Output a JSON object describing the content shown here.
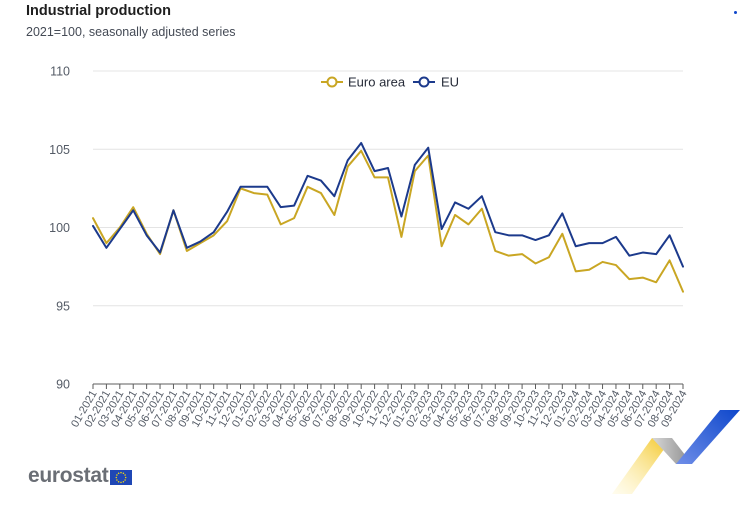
{
  "header": {
    "title": "Industrial production",
    "subtitle": "2021=100, seasonally adjusted series"
  },
  "logo": {
    "text": "eurostat"
  },
  "colors": {
    "euro_area": "#c9a623",
    "eu": "#1c3a8c",
    "grid": "#e4e4e4",
    "axis": "#5c5c5c"
  },
  "chart_data": {
    "type": "line",
    "title": "Industrial production",
    "subtitle": "2021=100, seasonally adjusted series",
    "xlabel": "",
    "ylabel": "",
    "ylim": [
      90,
      110
    ],
    "yticks": [
      90,
      95,
      100,
      105,
      110
    ],
    "grid": true,
    "legend_position": "top-center",
    "x": [
      "01-2021",
      "02-2021",
      "03-2021",
      "04-2021",
      "05-2021",
      "06-2021",
      "07-2021",
      "08-2021",
      "09-2021",
      "10-2021",
      "11-2021",
      "12-2021",
      "01-2022",
      "02-2022",
      "03-2022",
      "04-2022",
      "05-2022",
      "06-2022",
      "07-2022",
      "08-2022",
      "09-2022",
      "10-2022",
      "11-2022",
      "12-2022",
      "01-2023",
      "02-2023",
      "03-2023",
      "04-2023",
      "05-2023",
      "06-2023",
      "07-2023",
      "08-2023",
      "09-2023",
      "10-2023",
      "11-2023",
      "12-2023",
      "01-2024",
      "02-2024",
      "03-2024",
      "04-2024",
      "05-2024",
      "06-2024",
      "07-2024",
      "08-2024",
      "09-2024"
    ],
    "series": [
      {
        "name": "Euro area",
        "color": "#c9a623",
        "values": [
          100.6,
          99.0,
          100.0,
          101.3,
          99.6,
          98.3,
          101.1,
          98.5,
          99.0,
          99.5,
          100.4,
          102.5,
          102.2,
          102.1,
          100.2,
          100.6,
          102.6,
          102.2,
          100.8,
          103.9,
          104.9,
          103.2,
          103.2,
          99.4,
          103.6,
          104.6,
          98.8,
          100.8,
          100.2,
          101.2,
          98.5,
          98.2,
          98.3,
          97.7,
          98.1,
          99.6,
          97.2,
          97.3,
          97.8,
          97.6,
          96.7,
          96.8,
          96.5,
          97.9,
          95.9
        ]
      },
      {
        "name": "EU",
        "color": "#1c3a8c",
        "values": [
          100.1,
          98.7,
          99.9,
          101.1,
          99.5,
          98.4,
          101.1,
          98.7,
          99.1,
          99.7,
          101.0,
          102.6,
          102.6,
          102.6,
          101.3,
          101.4,
          103.3,
          103.0,
          102.0,
          104.3,
          105.4,
          103.6,
          103.8,
          100.7,
          104.0,
          105.1,
          99.9,
          101.6,
          101.2,
          102.0,
          99.7,
          99.5,
          99.5,
          99.2,
          99.5,
          100.9,
          98.8,
          99.0,
          99.0,
          99.4,
          98.2,
          98.4,
          98.3,
          99.5,
          97.5
        ]
      }
    ]
  }
}
